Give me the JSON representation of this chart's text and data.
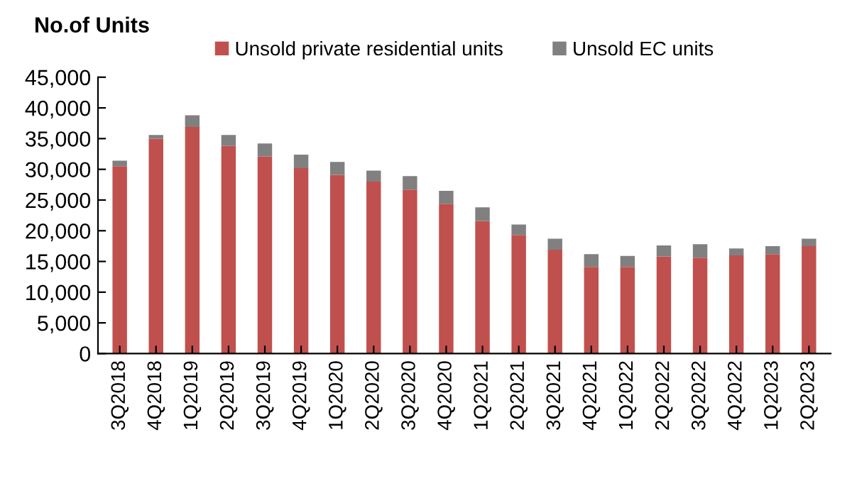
{
  "chart_data": {
    "type": "bar",
    "stacked": true,
    "ylabel": "No.of Units",
    "categories": [
      "3Q2018",
      "4Q2018",
      "1Q2019",
      "2Q2019",
      "3Q2019",
      "4Q2019",
      "1Q2020",
      "2Q2020",
      "3Q2020",
      "4Q2020",
      "1Q2021",
      "2Q2021",
      "3Q2021",
      "4Q2021",
      "1Q2022",
      "2Q2022",
      "3Q2022",
      "4Q2022",
      "1Q2023",
      "2Q2023"
    ],
    "series": [
      {
        "name": "Unsold private residential units",
        "color": "#c0504d",
        "values": [
          30500,
          35000,
          36900,
          33800,
          32100,
          30200,
          29100,
          28000,
          26700,
          24400,
          21600,
          19300,
          16900,
          14100,
          14100,
          15800,
          15600,
          16000,
          16200,
          17500
        ]
      },
      {
        "name": "Unsold EC units",
        "color": "#808080",
        "values": [
          900,
          600,
          1900,
          1800,
          2100,
          2200,
          2100,
          1800,
          2200,
          2100,
          2200,
          1700,
          1800,
          2100,
          1800,
          1800,
          2200,
          1100,
          1300,
          1200
        ]
      }
    ],
    "ylim": [
      0,
      45000
    ],
    "yticks": [
      {
        "value": 0,
        "label": "0"
      },
      {
        "value": 5000,
        "label": "5,000"
      },
      {
        "value": 10000,
        "label": "10,000"
      },
      {
        "value": 15000,
        "label": "15,000"
      },
      {
        "value": 20000,
        "label": "20,000"
      },
      {
        "value": 25000,
        "label": "25,000"
      },
      {
        "value": 30000,
        "label": "30,000"
      },
      {
        "value": 35000,
        "label": "35,000"
      },
      {
        "value": 40000,
        "label": "40,000"
      },
      {
        "value": 45000,
        "label": "45,000"
      }
    ],
    "legend": "top",
    "grid": false
  }
}
